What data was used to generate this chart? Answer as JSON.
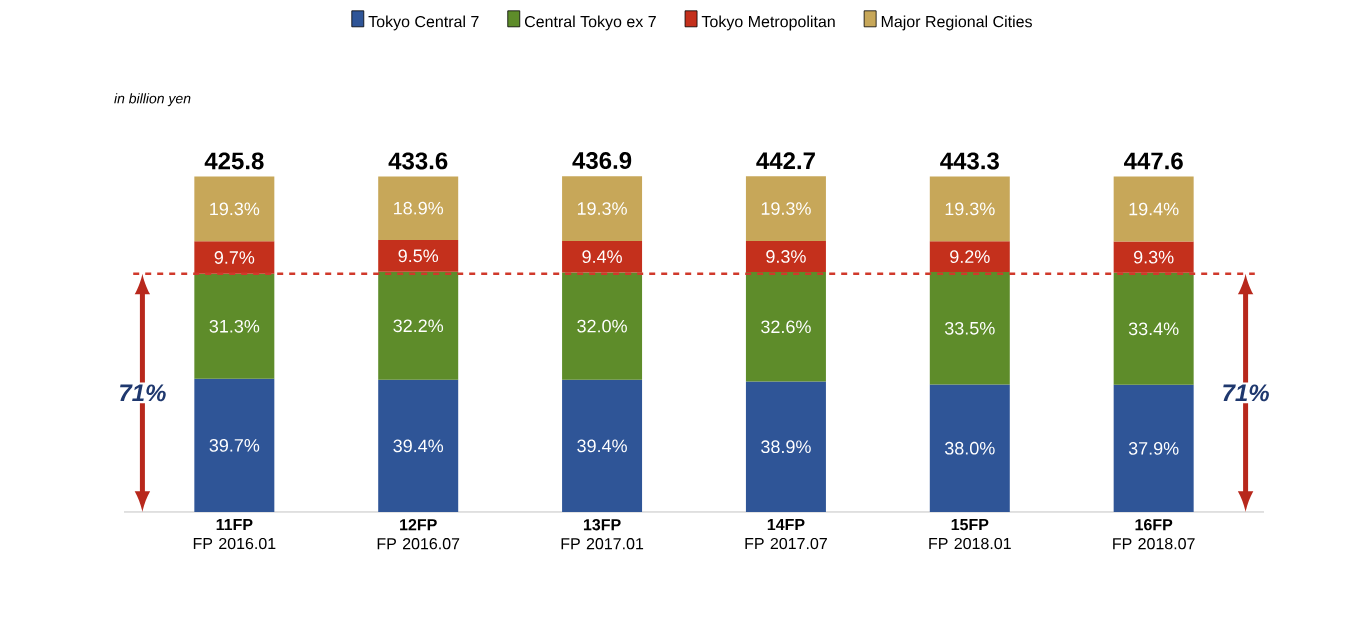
{
  "chart_data": {
    "type": "bar",
    "stacked": true,
    "legend": "top",
    "ylabel": "in billion yen",
    "categories": [
      "**11FP** FP 2016.01",
      "**12FP** FP 2016.07",
      "**13FP** FP 2017.01",
      "**14FP** FP 2017.07",
      "**15FP** FP 2018.01",
      "**16FP** FP 2018.07"
    ],
    "series": [
      {
        "name": "Tokyo Central 7",
        "color": "#2f5597",
        "values": [
          39.7,
          39.4,
          39.4,
          38.9,
          38.0,
          37.9
        ],
        "value_labels": [
          "39.7%",
          "39.4%",
          "39.4%",
          "38.9%",
          "38.0%",
          "37.9%"
        ]
      },
      {
        "name": "Central Tokyo ex 7",
        "color": "#5e8c2a",
        "values": [
          31.3,
          32.2,
          32.0,
          32.6,
          33.5,
          33.4
        ],
        "value_labels": [
          "31.3%",
          "32.2%",
          "32.0%",
          "32.6%",
          "33.5%",
          "33.4%"
        ]
      },
      {
        "name": "Tokyo Metropolitan",
        "color": "#c4301c",
        "values": [
          9.7,
          9.5,
          9.4,
          9.3,
          9.2,
          9.3
        ],
        "value_labels": [
          "9.7%",
          "9.5%",
          "9.4%",
          "9.3%",
          "9.2%",
          "9.3%"
        ]
      },
      {
        "name": "Major Regional Cities",
        "color": "#c7a759",
        "values": [
          19.3,
          18.9,
          19.3,
          19.3,
          19.3,
          19.4
        ],
        "value_labels": [
          "19.3%",
          "18.9%",
          "19.3%",
          "19.3%",
          "19.3%",
          "19.4%"
        ]
      }
    ],
    "annotations": [
      {
        "text": "425.8",
        "x": "**11FP** FP 2016.01",
        "y": 100
      },
      {
        "text": "433.6",
        "x": "**12FP** FP 2016.07",
        "y": 100
      },
      {
        "text": "436.9",
        "x": "**13FP** FP 2017.01",
        "y": 100.1
      },
      {
        "text": "442.7",
        "x": "**14FP** FP 2017.07",
        "y": 100.1
      },
      {
        "text": "443.3",
        "x": "**15FP** FP 2018.01",
        "y": 100
      },
      {
        "text": "447.6",
        "x": "**16FP** FP 2018.07",
        "y": 100
      },
      "71%",
      "71%"
    ],
    "ref_lines": [
      {
        "axis": "y",
        "value": 71,
        "color": "#d0392b",
        "line_style": "dashed"
      }
    ]
  }
}
